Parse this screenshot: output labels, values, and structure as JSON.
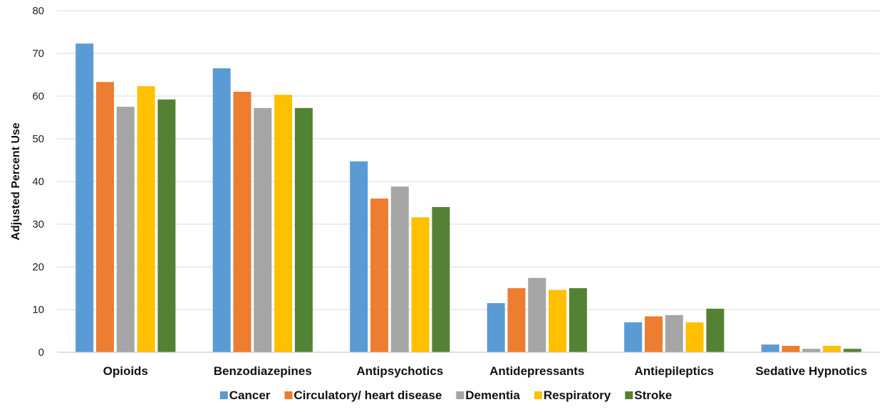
{
  "chart_data": {
    "type": "bar",
    "title": "",
    "xlabel": "",
    "ylabel": "Adjusted Percent Use",
    "ylim": [
      0,
      80
    ],
    "yticks": [
      0,
      10,
      20,
      30,
      40,
      50,
      60,
      70,
      80
    ],
    "grid": true,
    "legend_position": "bottom",
    "categories": [
      "Opioids",
      "Benzodiazepines",
      "Antipsychotics",
      "Antidepressants",
      "Antiepileptics",
      "Sedative Hypnotics"
    ],
    "series": [
      {
        "name": "Cancer",
        "color": "#5B9BD5",
        "values": [
          72.3,
          66.5,
          44.7,
          11.5,
          7.0,
          1.8
        ]
      },
      {
        "name": "Circulatory/ heart disease",
        "color": "#ED7D31",
        "values": [
          63.3,
          61.0,
          36.0,
          15.0,
          8.4,
          1.5
        ]
      },
      {
        "name": "Dementia",
        "color": "#A5A5A5",
        "values": [
          57.5,
          57.2,
          38.8,
          17.4,
          8.7,
          0.8
        ]
      },
      {
        "name": "Respiratory",
        "color": "#FFC000",
        "values": [
          62.3,
          60.3,
          31.6,
          14.6,
          7.0,
          1.5
        ]
      },
      {
        "name": "Stroke",
        "color": "#548235",
        "values": [
          59.2,
          57.2,
          34.0,
          15.0,
          10.2,
          0.8
        ]
      }
    ]
  }
}
